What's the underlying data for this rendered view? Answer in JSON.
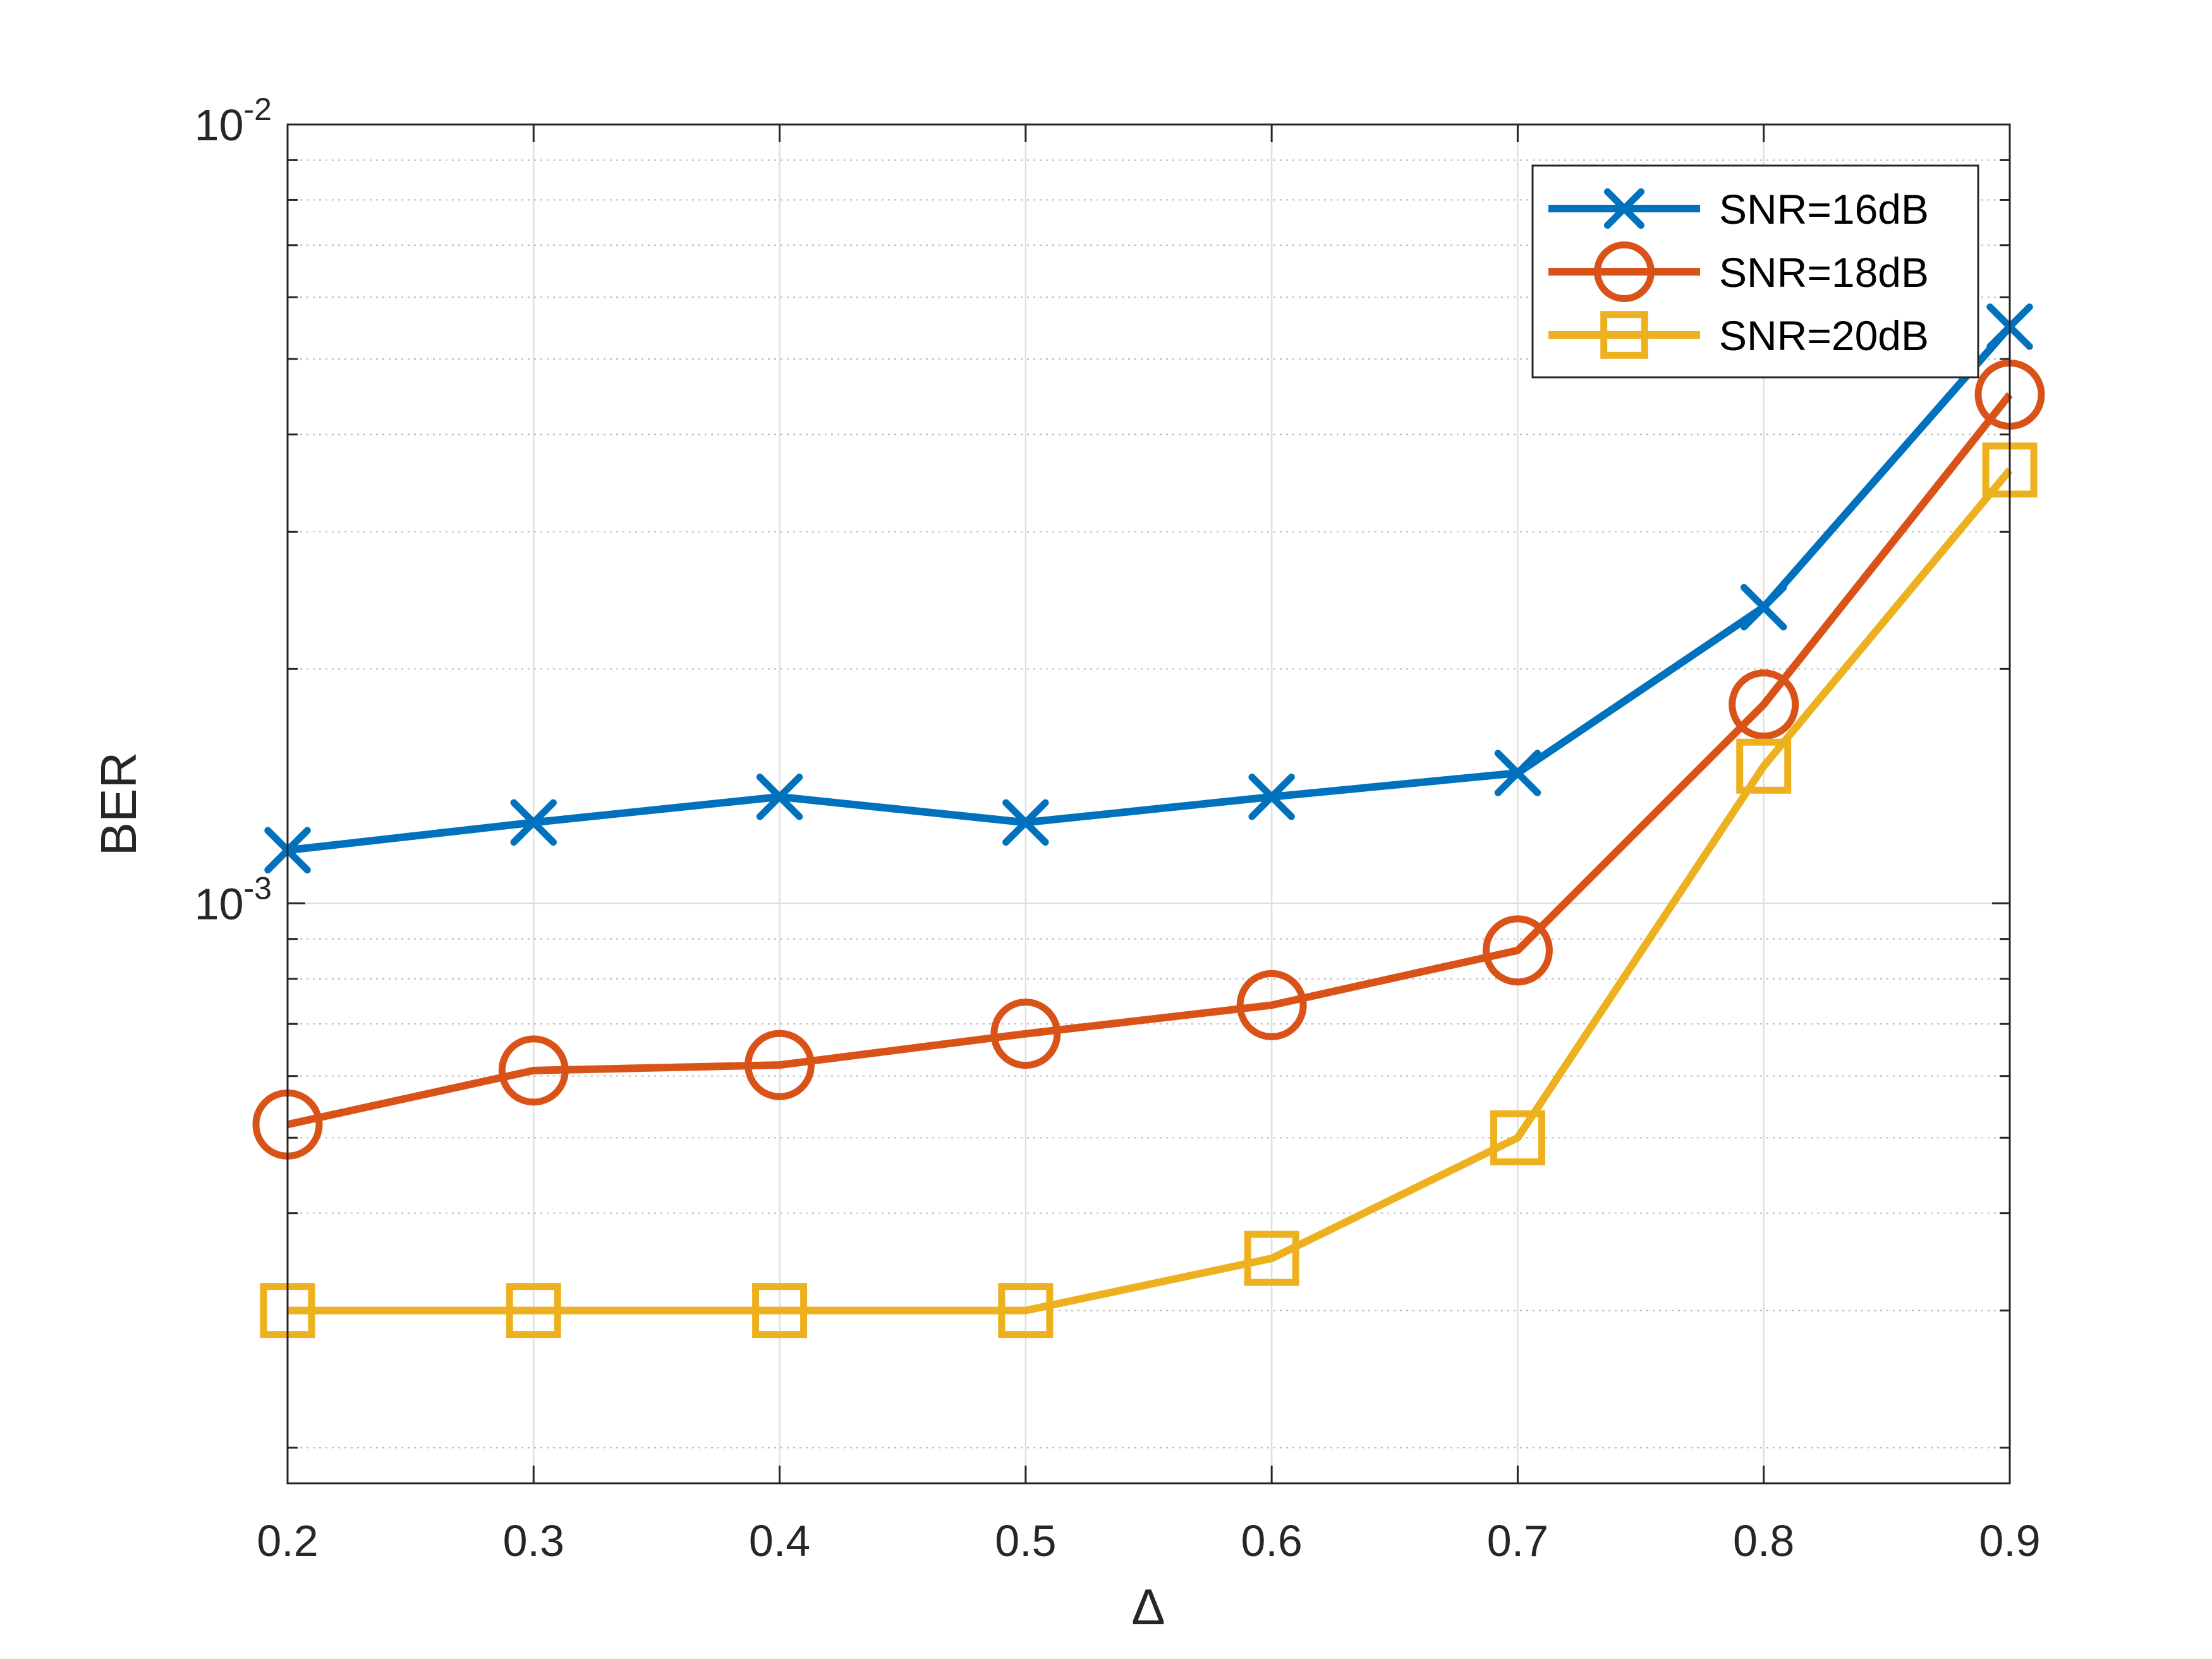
{
  "chart_data": {
    "type": "line",
    "xlabel": "Δ",
    "ylabel": "BER",
    "x": [
      0.2,
      0.3,
      0.4,
      0.5,
      0.6,
      0.7,
      0.8,
      0.9
    ],
    "xlim": [
      0.2,
      0.9
    ],
    "x_ticks": [
      "0.2",
      "0.3",
      "0.4",
      "0.5",
      "0.6",
      "0.7",
      "0.8",
      "0.9"
    ],
    "yscale": "log",
    "ylim": [
      0.00018,
      0.01
    ],
    "y_ticks": [
      {
        "value": 0.001,
        "base": "10",
        "exp": "-3"
      },
      {
        "value": 0.01,
        "base": "10",
        "exp": "-2"
      }
    ],
    "grid": true,
    "legend_position": "top-right",
    "series": [
      {
        "name": "SNR=16dB",
        "marker": "x",
        "color": "#0072BD",
        "values": [
          0.00117,
          0.00127,
          0.00137,
          0.00127,
          0.00137,
          0.00147,
          0.0024,
          0.0055
        ]
      },
      {
        "name": "SNR=18dB",
        "marker": "o",
        "color": "#D95319",
        "values": [
          0.00052,
          0.00061,
          0.00062,
          0.00068,
          0.00074,
          0.00087,
          0.0018,
          0.0045
        ]
      },
      {
        "name": "SNR=20dB",
        "marker": "s",
        "color": "#EDB120",
        "values": [
          0.0003,
          0.0003,
          0.0003,
          0.0003,
          0.00035,
          0.0005,
          0.0015,
          0.0036
        ]
      }
    ]
  }
}
